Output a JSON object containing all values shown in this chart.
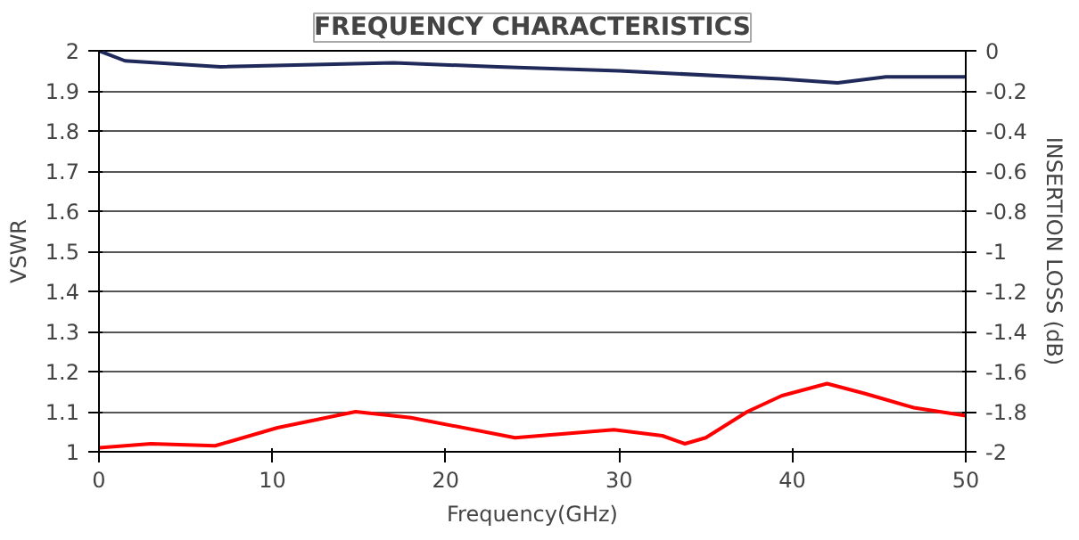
{
  "chart_data": {
    "type": "line",
    "title": "FREQUENCY CHARACTERISTICS",
    "xlabel": "Frequency(GHz)",
    "ylabel": "VSWR",
    "y2label": "INSERTION LOSS (dB)",
    "xlim": [
      0,
      50
    ],
    "xticks": [
      0,
      10,
      20,
      30,
      40,
      50
    ],
    "ylim": [
      1,
      2
    ],
    "yticks": [
      1,
      1.1,
      1.2,
      1.3,
      1.4,
      1.5,
      1.6,
      1.7,
      1.8,
      1.9,
      2
    ],
    "y2lim": [
      -2,
      0
    ],
    "y2ticks": [
      -2,
      -1.8,
      -1.6,
      -1.4,
      -1.2,
      -1,
      -0.8,
      -0.6,
      -0.4,
      -0.2,
      0
    ],
    "grid": "y",
    "line_style": "solid",
    "series": [
      {
        "color": "#ff0000",
        "x": [
          0,
          3,
          6.7,
          10.3,
          14.8,
          18,
          24,
          29.7,
          32.5,
          33.8,
          35,
          37.4,
          39.4,
          42,
          44.2,
          47,
          50
        ],
        "values": [
          1.01,
          1.02,
          1.015,
          1.06,
          1.1,
          1.085,
          1.035,
          1.055,
          1.04,
          1.02,
          1.035,
          1.1,
          1.14,
          1.17,
          1.145,
          1.11,
          1.09
        ]
      },
      {
        "color": "#1f2a5a",
        "axis": "y2",
        "x": [
          0,
          1.5,
          7,
          17,
          23,
          30,
          39.3,
          42.6,
          45.4,
          50
        ],
        "values": [
          0,
          -0.05,
          -0.08,
          -0.06,
          -0.08,
          -0.1,
          -0.14,
          -0.16,
          -0.13,
          -0.13
        ]
      }
    ]
  }
}
